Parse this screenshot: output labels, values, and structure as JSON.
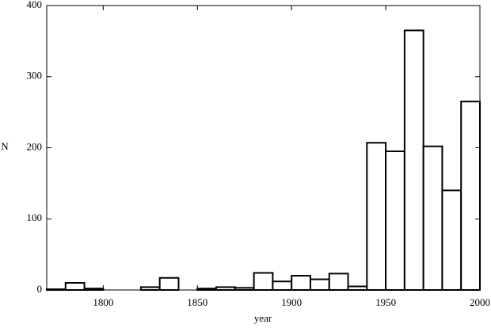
{
  "chart_data": {
    "type": "histogram",
    "x_label": "year",
    "y_label": "N",
    "bins": [
      1770,
      1780,
      1790,
      1800,
      1810,
      1820,
      1830,
      1840,
      1850,
      1860,
      1870,
      1880,
      1890,
      1900,
      1910,
      1920,
      1930,
      1940,
      1950,
      1960,
      1970,
      1980,
      1990,
      2000
    ],
    "counts": [
      1,
      10,
      2,
      0,
      0,
      4,
      17,
      0,
      2,
      4,
      3,
      24,
      12,
      20,
      15,
      23,
      5,
      207,
      195,
      365,
      202,
      140,
      265
    ],
    "color": "#ffffff",
    "edgecolor": "#000000",
    "xlim": [
      1770,
      2000
    ],
    "ylim": [
      0,
      400
    ],
    "xticks": [
      1800,
      1850,
      1900,
      1950,
      2000
    ],
    "yticks": [
      0,
      100,
      200,
      300,
      400
    ],
    "grid": false
  }
}
